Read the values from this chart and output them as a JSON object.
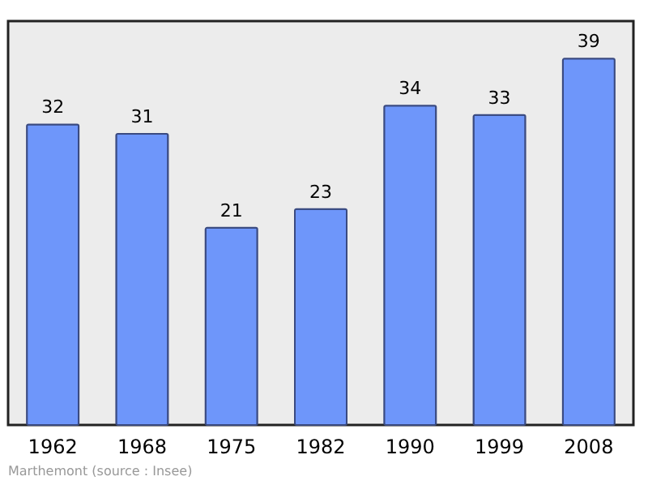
{
  "chart_data": {
    "type": "bar",
    "categories": [
      "1962",
      "1968",
      "1975",
      "1982",
      "1990",
      "1999",
      "2008"
    ],
    "values": [
      32,
      31,
      21,
      23,
      34,
      33,
      39
    ],
    "color": "#6e96fa",
    "ylim": [
      0,
      43
    ],
    "data_labels": true,
    "tick_labels": "x",
    "annotations": [
      "Marthemont    (source : Insee)"
    ]
  }
}
